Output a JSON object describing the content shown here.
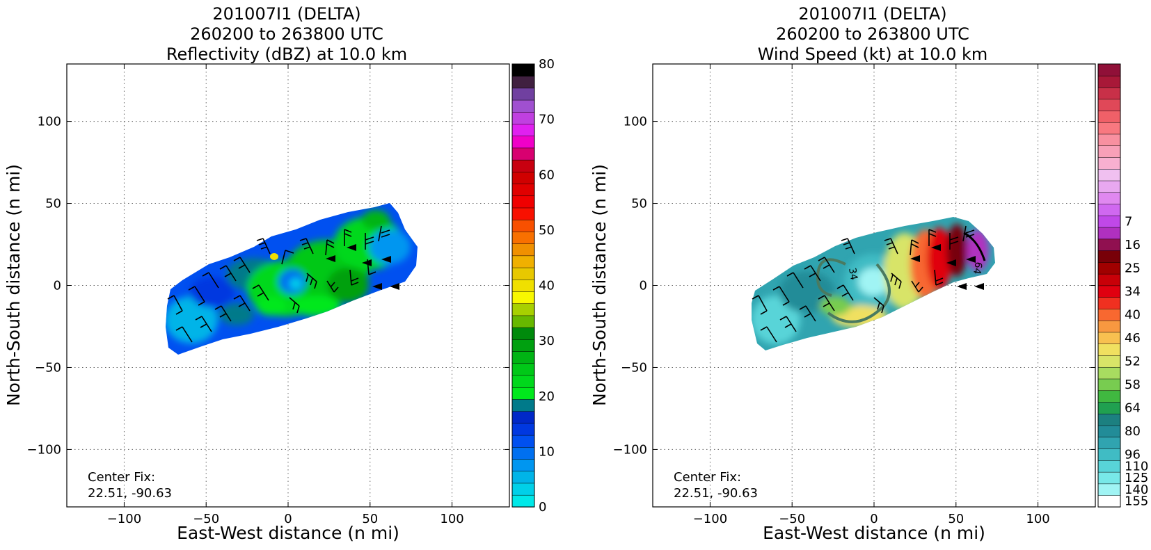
{
  "chart_data": [
    {
      "type": "heatmap",
      "title_lines": [
        "201007I1 (DELTA)",
        "260200 to 263800 UTC",
        "Reflectivity (dBZ) at 10.0 km"
      ],
      "xlabel": "East-West distance (n mi)",
      "ylabel": "North-South distance (n mi)",
      "xlim": [
        -135,
        135
      ],
      "ylim": [
        -135,
        135
      ],
      "xticks": [
        -100,
        -50,
        0,
        50,
        100
      ],
      "yticks": [
        -100,
        -50,
        0,
        50,
        100
      ],
      "x_tick_labels": [
        "−100",
        "−50",
        "0",
        "50",
        "100"
      ],
      "y_tick_labels": [
        "−100",
        "−50",
        "0",
        "50",
        "100"
      ],
      "grid": true,
      "annotation": [
        "Center Fix:",
        "22.51, -90.63"
      ],
      "colorbar": {
        "min": 0,
        "max": 80,
        "tick_values": [
          0,
          10,
          20,
          30,
          40,
          50,
          60,
          70,
          80
        ],
        "tick_labels": [
          "0",
          "10",
          "20",
          "30",
          "40",
          "50",
          "60",
          "70",
          "80"
        ],
        "colors": [
          "#00e8e8",
          "#00d0e8",
          "#00b4e8",
          "#0096f0",
          "#0070f0",
          "#0050f0",
          "#0038e0",
          "#0028c8",
          "#007a8a",
          "#00e81c",
          "#00d81c",
          "#00c818",
          "#00b414",
          "#00a010",
          "#008a0c",
          "#68b800",
          "#a8d000",
          "#f8f800",
          "#f0e000",
          "#e8c800",
          "#f0b000",
          "#f09000",
          "#f87000",
          "#f85000",
          "#f81000",
          "#f00000",
          "#e00000",
          "#d00000",
          "#c80010",
          "#d80070",
          "#f000c8",
          "#e020f0",
          "#c040e0",
          "#a050d0",
          "#7040a0",
          "#402040",
          "#000000"
        ]
      },
      "wind_barbs": true
    },
    {
      "type": "heatmap",
      "title_lines": [
        "201007I1 (DELTA)",
        "260200 to 263800 UTC",
        "Wind Speed (kt) at 10.0 km"
      ],
      "xlabel": "East-West distance (n mi)",
      "ylabel": "North-South distance (n mi)",
      "xlim": [
        -135,
        135
      ],
      "ylim": [
        -135,
        135
      ],
      "xticks": [
        -100,
        -50,
        0,
        50,
        100
      ],
      "yticks": [
        -100,
        -50,
        0,
        50,
        100
      ],
      "x_tick_labels": [
        "−100",
        "−50",
        "0",
        "50",
        "100"
      ],
      "y_tick_labels": [
        "−100",
        "−50",
        "0",
        "50",
        "100"
      ],
      "grid": true,
      "annotation": [
        "Center Fix:",
        "22.51, -90.63"
      ],
      "contour_labels": [
        "34",
        "64"
      ],
      "colorbar": {
        "tick_labels": [
          "7",
          "16",
          "25",
          "34",
          "40",
          "46",
          "52",
          "58",
          "64",
          "80",
          "96",
          "110",
          "125",
          "140",
          "155"
        ],
        "colors": [
          "#ffffff",
          "#a0f4f4",
          "#78e8e8",
          "#58d4d8",
          "#40bcc4",
          "#30a4b0",
          "#228c98",
          "#1c8080",
          "#20a050",
          "#40b840",
          "#78cc50",
          "#a8dc60",
          "#d8e468",
          "#f0e060",
          "#f8c050",
          "#f89840",
          "#f86830",
          "#f03020",
          "#e00010",
          "#c80008",
          "#a00000",
          "#780008",
          "#901050",
          "#b030c0",
          "#c048e8",
          "#d068f0",
          "#e088f0",
          "#e8a8f0",
          "#f0c0f0",
          "#f8b0d0",
          "#f8a0b8",
          "#f890a0",
          "#f87880",
          "#f06068",
          "#e04858",
          "#c83048",
          "#a81838",
          "#901038"
        ],
        "label_rows": [
          24,
          22,
          20,
          18,
          16,
          14,
          12,
          10,
          8,
          6,
          4,
          3,
          2,
          1,
          0
        ]
      },
      "wind_barbs": true
    }
  ]
}
